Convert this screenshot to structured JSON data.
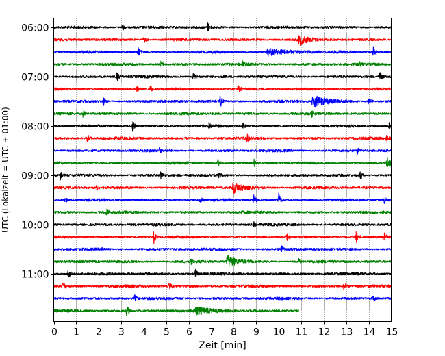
{
  "chart_data": {
    "type": "line",
    "subtype": "helicorder",
    "title": "",
    "xlabel": "Zeit  [min]",
    "ylabel": "UTC (Lokalzeit = UTC + 01:00)",
    "xlim": [
      0,
      15
    ],
    "x_ticks": [
      0,
      1,
      2,
      3,
      4,
      5,
      6,
      7,
      8,
      9,
      10,
      11,
      12,
      13,
      14,
      15
    ],
    "x_tick_labels": [
      "0",
      "1",
      "2",
      "3",
      "4",
      "5",
      "6",
      "7",
      "8",
      "9",
      "10",
      "11",
      "12",
      "13",
      "14",
      "15"
    ],
    "grid": "vertical dotted at each minute",
    "row_interval_minutes": 15,
    "y_tick_labels": [
      "06:00",
      "07:00",
      "08:00",
      "09:00",
      "10:00",
      "11:00"
    ],
    "y_tick_row_index": [
      0,
      4,
      8,
      12,
      16,
      20
    ],
    "color_cycle": [
      "#000000",
      "#ff0000",
      "#0000ff",
      "#008000"
    ],
    "traces": [
      {
        "start": "06:00",
        "color": "#000000",
        "end_min": 15,
        "events": [
          {
            "t": 3.05,
            "a": 0.5
          },
          {
            "t": 6.85,
            "a": 0.8
          }
        ]
      },
      {
        "start": "06:15",
        "color": "#ff0000",
        "end_min": 15,
        "events": [
          {
            "t": 4.0,
            "a": 0.6
          },
          {
            "t": 10.9,
            "a": 0.9,
            "dur": 0.4
          }
        ]
      },
      {
        "start": "06:30",
        "color": "#0000ff",
        "end_min": 15,
        "events": [
          {
            "t": 3.75,
            "a": 1.0
          },
          {
            "t": 9.5,
            "a": 0.6,
            "dur": 0.8
          },
          {
            "t": 14.2,
            "a": 0.8
          }
        ]
      },
      {
        "start": "06:45",
        "color": "#008000",
        "end_min": 15,
        "events": [
          {
            "t": 4.75,
            "a": 0.5
          },
          {
            "t": 8.4,
            "a": 0.7
          },
          {
            "t": 13.6,
            "a": 0.6
          }
        ]
      },
      {
        "start": "07:00",
        "color": "#000000",
        "end_min": 15,
        "events": [
          {
            "t": 2.8,
            "a": 0.8
          },
          {
            "t": 6.2,
            "a": 0.7
          },
          {
            "t": 14.5,
            "a": 0.9
          }
        ]
      },
      {
        "start": "07:15",
        "color": "#ff0000",
        "end_min": 15,
        "events": [
          {
            "t": 3.7,
            "a": 0.7
          },
          {
            "t": 4.3,
            "a": 0.6
          },
          {
            "t": 8.2,
            "a": 0.8
          }
        ]
      },
      {
        "start": "07:30",
        "color": "#0000ff",
        "end_min": 15,
        "events": [
          {
            "t": 2.2,
            "a": 0.8
          },
          {
            "t": 7.4,
            "a": 1.0
          },
          {
            "t": 11.5,
            "a": 1.0,
            "dur": 0.6
          },
          {
            "t": 14.0,
            "a": 0.7
          }
        ]
      },
      {
        "start": "07:45",
        "color": "#008000",
        "end_min": 15,
        "events": [
          {
            "t": 1.3,
            "a": 0.6
          },
          {
            "t": 11.45,
            "a": 0.7
          }
        ]
      },
      {
        "start": "08:00",
        "color": "#000000",
        "end_min": 15,
        "events": [
          {
            "t": 3.5,
            "a": 1.0
          },
          {
            "t": 6.9,
            "a": 0.7
          },
          {
            "t": 8.4,
            "a": 0.7
          },
          {
            "t": 14.9,
            "a": 0.8
          }
        ]
      },
      {
        "start": "08:15",
        "color": "#ff0000",
        "end_min": 15,
        "events": [
          {
            "t": 1.5,
            "a": 0.6
          },
          {
            "t": 8.6,
            "a": 0.8
          },
          {
            "t": 14.8,
            "a": 0.7
          }
        ]
      },
      {
        "start": "08:30",
        "color": "#0000ff",
        "end_min": 15,
        "events": [
          {
            "t": 4.7,
            "a": 0.5
          },
          {
            "t": 13.5,
            "a": 0.5
          }
        ]
      },
      {
        "start": "08:45",
        "color": "#008000",
        "end_min": 15,
        "events": [
          {
            "t": 7.3,
            "a": 0.8
          },
          {
            "t": 8.9,
            "a": 0.7
          },
          {
            "t": 14.8,
            "a": 0.9,
            "dur": 0.3
          }
        ]
      },
      {
        "start": "09:00",
        "color": "#000000",
        "end_min": 15,
        "events": [
          {
            "t": 0.3,
            "a": 0.8
          },
          {
            "t": 4.75,
            "a": 0.9
          },
          {
            "t": 7.3,
            "a": 1.0
          },
          {
            "t": 13.6,
            "a": 1.0
          }
        ]
      },
      {
        "start": "09:15",
        "color": "#ff0000",
        "end_min": 15,
        "events": [
          {
            "t": 1.9,
            "a": 0.4
          },
          {
            "t": 7.95,
            "a": 0.9,
            "dur": 0.5
          },
          {
            "t": 8.1,
            "a": 0.7
          }
        ]
      },
      {
        "start": "09:30",
        "color": "#0000ff",
        "end_min": 15,
        "events": [
          {
            "t": 0.5,
            "a": 0.6
          },
          {
            "t": 6.5,
            "a": 0.7
          },
          {
            "t": 8.9,
            "a": 0.9
          },
          {
            "t": 10.0,
            "a": 1.0
          },
          {
            "t": 14.7,
            "a": 0.8
          }
        ]
      },
      {
        "start": "09:45",
        "color": "#008000",
        "end_min": 15,
        "events": [
          {
            "t": 2.35,
            "a": 0.8
          }
        ]
      },
      {
        "start": "10:00",
        "color": "#000000",
        "end_min": 15,
        "events": [
          {
            "t": 8.9,
            "a": 0.6
          }
        ]
      },
      {
        "start": "10:15",
        "color": "#ff0000",
        "end_min": 15,
        "events": [
          {
            "t": 4.45,
            "a": 1.0
          },
          {
            "t": 10.35,
            "a": 0.8
          },
          {
            "t": 13.45,
            "a": 1.0
          },
          {
            "t": 14.7,
            "a": 0.6
          }
        ]
      },
      {
        "start": "10:30",
        "color": "#0000ff",
        "end_min": 15,
        "events": [
          {
            "t": 2.1,
            "a": 0.5
          },
          {
            "t": 10.1,
            "a": 0.9
          }
        ]
      },
      {
        "start": "10:45",
        "color": "#008000",
        "end_min": 15,
        "events": [
          {
            "t": 6.1,
            "a": 0.6
          },
          {
            "t": 7.7,
            "a": 1.0,
            "dur": 0.4
          },
          {
            "t": 10.9,
            "a": 0.5
          }
        ]
      },
      {
        "start": "11:00",
        "color": "#000000",
        "end_min": 15,
        "events": [
          {
            "t": 0.65,
            "a": 1.0
          },
          {
            "t": 6.3,
            "a": 0.7
          }
        ]
      },
      {
        "start": "11:15",
        "color": "#ff0000",
        "end_min": 15,
        "events": [
          {
            "t": 0.4,
            "a": 1.0
          },
          {
            "t": 5.1,
            "a": 0.8
          },
          {
            "t": 12.9,
            "a": 0.7
          }
        ]
      },
      {
        "start": "11:30",
        "color": "#0000ff",
        "end_min": 15,
        "events": [
          {
            "t": 3.6,
            "a": 0.5
          },
          {
            "t": 14.2,
            "a": 0.5
          }
        ]
      },
      {
        "start": "11:45",
        "color": "#008000",
        "end_min": 10.9,
        "events": [
          {
            "t": 3.25,
            "a": 1.0
          },
          {
            "t": 6.3,
            "a": 0.7,
            "dur": 0.6
          }
        ]
      }
    ]
  }
}
